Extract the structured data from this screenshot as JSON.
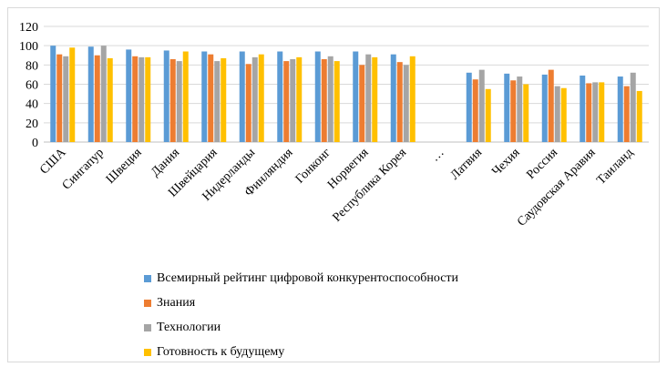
{
  "chart_data": {
    "type": "bar",
    "title": "",
    "xlabel": "",
    "ylabel": "",
    "ylim": [
      0,
      120
    ],
    "yticks": [
      0,
      20,
      40,
      60,
      80,
      100,
      120
    ],
    "grid": "horizontal",
    "legend_position": "bottom",
    "categories": [
      "США",
      "Сингапур",
      "Швеция",
      "Дания",
      "Швейцария",
      "Нидерланды",
      "Финляндия",
      "Гонконг",
      "Норвегия",
      "Республика Корея",
      "…",
      "Латвия",
      "Чехия",
      "Россия",
      "Саудовская Аравия",
      "Таиланд"
    ],
    "series": [
      {
        "name": "Всемирный рейтинг цифровой конкурентоспособности",
        "color": "#5b9bd5",
        "values": [
          100,
          99,
          96,
          95,
          94,
          94,
          94,
          94,
          94,
          91,
          null,
          72,
          71,
          70,
          69,
          68
        ]
      },
      {
        "name": "Знания",
        "color": "#ed7d31",
        "values": [
          91,
          90,
          89,
          86,
          91,
          81,
          84,
          86,
          80,
          83,
          null,
          65,
          64,
          75,
          61,
          58
        ]
      },
      {
        "name": "Технологии",
        "color": "#a5a5a5",
        "values": [
          89,
          100,
          88,
          84,
          84,
          88,
          86,
          89,
          91,
          80,
          null,
          75,
          68,
          58,
          62,
          72
        ]
      },
      {
        "name": "Готовность к будущему",
        "color": "#ffc000",
        "values": [
          98,
          87,
          88,
          94,
          87,
          91,
          88,
          84,
          88,
          89,
          null,
          55,
          60,
          56,
          62,
          53
        ]
      }
    ]
  }
}
